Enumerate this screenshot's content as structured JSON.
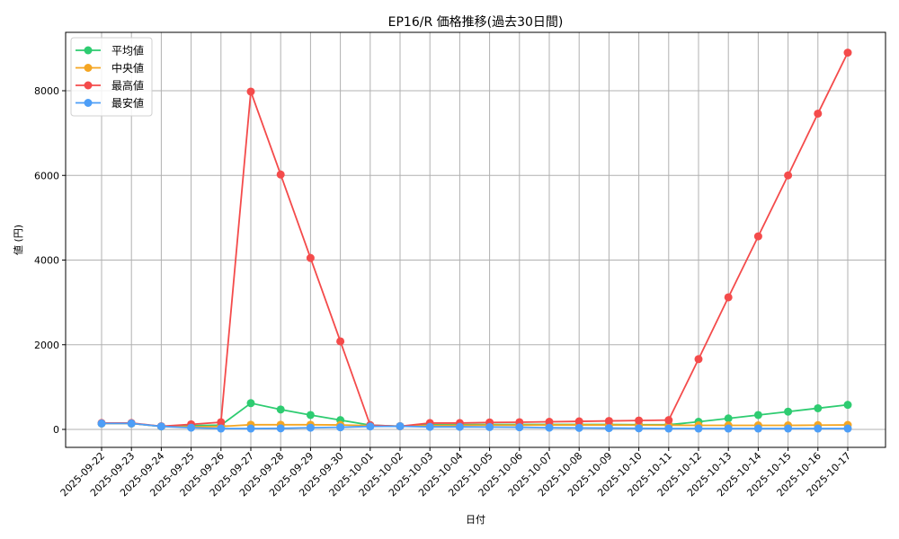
{
  "chart_data": {
    "type": "line",
    "title": "EP16/R 価格推移(過去30日間)",
    "xlabel": "日付",
    "ylabel": "値 (円)",
    "ylim": [
      -420,
      9350
    ],
    "yticks": [
      0,
      2000,
      4000,
      6000,
      8000
    ],
    "grid": true,
    "legend_position": "upper left",
    "categories": [
      "2025-09-22",
      "2025-09-23",
      "2025-09-24",
      "2025-09-25",
      "2025-09-26",
      "2025-09-27",
      "2025-09-28",
      "2025-09-29",
      "2025-09-30",
      "2025-10-01",
      "2025-10-02",
      "2025-10-03",
      "2025-10-04",
      "2025-10-05",
      "2025-10-06",
      "2025-10-07",
      "2025-10-08",
      "2025-10-09",
      "2025-10-10",
      "2025-10-11",
      "2025-10-12",
      "2025-10-13",
      "2025-10-14",
      "2025-10-15",
      "2025-10-16",
      "2025-10-17"
    ],
    "series": [
      {
        "name": "平均値",
        "color": "#2ecc71",
        "values": [
          140,
          140,
          70,
          90,
          100,
          620,
          470,
          340,
          220,
          100,
          75,
          110,
          110,
          115,
          115,
          115,
          115,
          115,
          110,
          110,
          180,
          260,
          340,
          420,
          500,
          580
        ]
      },
      {
        "name": "中央値",
        "color": "#f5a623",
        "values": [
          140,
          140,
          70,
          60,
          70,
          110,
          110,
          110,
          105,
          90,
          75,
          90,
          95,
          100,
          100,
          105,
          105,
          105,
          100,
          100,
          95,
          95,
          95,
          95,
          100,
          105
        ]
      },
      {
        "name": "最高値",
        "color": "#f44b4b",
        "values": [
          150,
          150,
          75,
          120,
          170,
          7980,
          6020,
          4050,
          2080,
          100,
          75,
          150,
          150,
          165,
          170,
          180,
          190,
          200,
          210,
          220,
          1660,
          3120,
          4560,
          6000,
          7460,
          8900
        ]
      },
      {
        "name": "最安値",
        "color": "#4d9ef7",
        "values": [
          140,
          140,
          70,
          40,
          20,
          20,
          25,
          40,
          50,
          70,
          75,
          60,
          60,
          55,
          50,
          40,
          35,
          30,
          25,
          20,
          20,
          20,
          20,
          20,
          20,
          20
        ]
      }
    ]
  }
}
